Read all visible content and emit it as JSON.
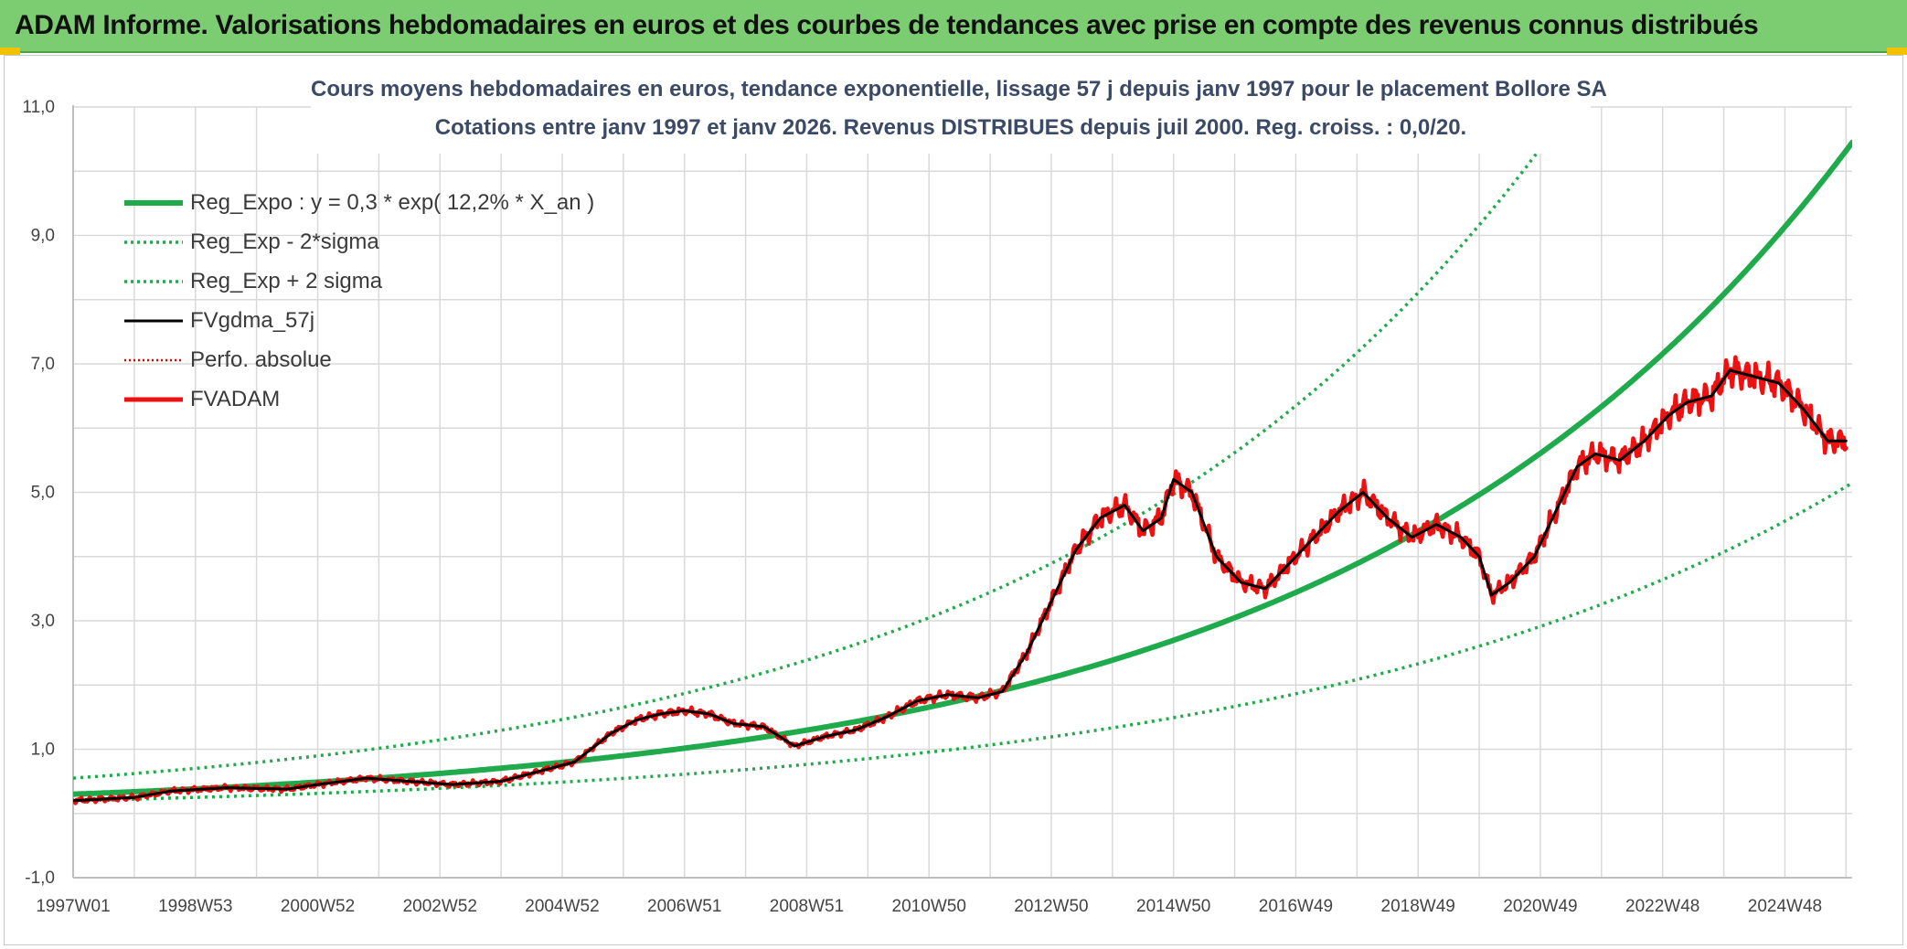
{
  "header": {
    "title": "ADAM Informe. Valorisations hebdomadaires en euros et des courbes de tendances avec prise en compte des revenus connus distribués"
  },
  "chart_data": {
    "type": "line",
    "title": "Cours moyens hebdomadaires en euros, tendance exponentielle, lissage 57 j depuis janv 1997 pour le placement Bollore SA",
    "subtitle": "Cotations entre janv 1997 et janv 2026. Revenus DISTRIBUES depuis juil 2000. Reg. croiss. : 0,0/20.",
    "xlabel": "",
    "ylabel": "",
    "ylim": [
      -1,
      11
    ],
    "xlim": [
      1997.0,
      2026.1
    ],
    "grid": true,
    "legend_position": "top-left",
    "y_ticks": [
      "-1,0",
      "1,0",
      "3,0",
      "5,0",
      "7,0",
      "9,0",
      "11,0"
    ],
    "y_tick_values": [
      -1,
      1,
      3,
      5,
      7,
      9,
      11
    ],
    "x_ticks": [
      "1997W01",
      "1998W53",
      "2000W52",
      "2002W52",
      "2004W52",
      "2006W51",
      "2008W51",
      "2010W50",
      "2012W50",
      "2014W50",
      "2016W49",
      "2018W49",
      "2020W49",
      "2022W48",
      "2024W48"
    ],
    "x_tick_values": [
      1997,
      1999,
      2001,
      2003,
      2005,
      2007,
      2009,
      2011,
      2013,
      2015,
      2017,
      2019,
      2021,
      2023,
      2025
    ],
    "series": [
      {
        "name": "Reg_Expo : y = 0,3 * exp( 12,2% *  X_an )",
        "color": "#1faa4b",
        "style": "solid-thick",
        "formula": "exp",
        "a": 0.3,
        "b": 0.122
      },
      {
        "name": "Reg_Exp - 2*sigma",
        "color": "#1faa4b",
        "style": "dotted",
        "formula": "exp",
        "a": 0.2,
        "b": 0.1116
      },
      {
        "name": "Reg_Exp + 2 sigma",
        "color": "#1faa4b",
        "style": "dotted",
        "formula": "exp",
        "a": 0.55,
        "b": 0.1223
      },
      {
        "name": "FVgdma_57j",
        "color": "#000000",
        "style": "solid",
        "x": [
          1997.0,
          1998.0,
          1998.6,
          1999.5,
          2000.5,
          2001.0,
          2001.8,
          2002.5,
          2003.2,
          2004.0,
          2004.6,
          2005.2,
          2005.8,
          2006.2,
          2006.6,
          2007.0,
          2007.4,
          2007.8,
          2008.3,
          2008.8,
          2009.3,
          2009.8,
          2010.3,
          2010.8,
          2011.3,
          2011.8,
          2012.2,
          2012.6,
          2013.0,
          2013.4,
          2013.8,
          2014.2,
          2014.5,
          2014.8,
          2015.0,
          2015.3,
          2015.7,
          2016.1,
          2016.5,
          2016.9,
          2017.3,
          2017.7,
          2018.1,
          2018.5,
          2018.9,
          2019.3,
          2019.7,
          2020.0,
          2020.2,
          2020.5,
          2020.9,
          2021.3,
          2021.6,
          2021.9,
          2022.3,
          2022.7,
          2023.1,
          2023.4,
          2023.8,
          2024.1,
          2024.5,
          2024.9,
          2025.3,
          2025.7,
          2026.0
        ],
        "y": [
          0.2,
          0.25,
          0.35,
          0.4,
          0.38,
          0.45,
          0.55,
          0.5,
          0.45,
          0.5,
          0.65,
          0.8,
          1.25,
          1.45,
          1.55,
          1.6,
          1.55,
          1.4,
          1.35,
          1.05,
          1.2,
          1.3,
          1.5,
          1.75,
          1.85,
          1.8,
          1.9,
          2.5,
          3.3,
          4.1,
          4.6,
          4.8,
          4.4,
          4.6,
          5.2,
          5.0,
          4.0,
          3.6,
          3.5,
          3.9,
          4.3,
          4.7,
          5.0,
          4.6,
          4.3,
          4.5,
          4.3,
          4.0,
          3.4,
          3.6,
          4.0,
          4.8,
          5.4,
          5.6,
          5.5,
          5.8,
          6.2,
          6.4,
          6.5,
          6.9,
          6.8,
          6.7,
          6.3,
          5.8,
          5.8
        ]
      },
      {
        "name": "Perfo. absolue",
        "color": "#e00000",
        "style": "dotted",
        "x": [],
        "y": []
      },
      {
        "name": "FVADAM",
        "color": "#ee1111",
        "style": "solid-thick",
        "x": [
          1997.0,
          1998.0,
          1998.6,
          1999.5,
          2000.5,
          2001.0,
          2001.8,
          2002.5,
          2003.2,
          2004.0,
          2004.6,
          2005.2,
          2005.8,
          2006.2,
          2006.6,
          2007.0,
          2007.4,
          2007.8,
          2008.3,
          2008.8,
          2009.3,
          2009.8,
          2010.3,
          2010.8,
          2011.3,
          2011.8,
          2012.2,
          2012.6,
          2013.0,
          2013.4,
          2013.8,
          2014.2,
          2014.5,
          2014.8,
          2015.0,
          2015.3,
          2015.7,
          2016.1,
          2016.5,
          2016.9,
          2017.3,
          2017.7,
          2018.1,
          2018.5,
          2018.9,
          2019.3,
          2019.7,
          2020.0,
          2020.2,
          2020.5,
          2020.9,
          2021.3,
          2021.6,
          2021.9,
          2022.3,
          2022.7,
          2023.1,
          2023.4,
          2023.8,
          2024.1,
          2024.5,
          2024.9,
          2025.3,
          2025.7,
          2026.0
        ],
        "y": [
          0.2,
          0.25,
          0.35,
          0.4,
          0.38,
          0.45,
          0.55,
          0.5,
          0.45,
          0.5,
          0.65,
          0.8,
          1.25,
          1.45,
          1.55,
          1.6,
          1.55,
          1.4,
          1.35,
          1.05,
          1.2,
          1.3,
          1.5,
          1.75,
          1.85,
          1.8,
          1.9,
          2.5,
          3.3,
          4.1,
          4.6,
          4.8,
          4.4,
          4.6,
          5.2,
          5.0,
          4.0,
          3.6,
          3.5,
          3.9,
          4.3,
          4.7,
          5.0,
          4.6,
          4.3,
          4.5,
          4.3,
          4.0,
          3.4,
          3.6,
          4.0,
          4.8,
          5.4,
          5.6,
          5.5,
          5.8,
          6.2,
          6.4,
          6.5,
          6.9,
          6.8,
          6.7,
          6.3,
          5.8,
          5.8
        ]
      }
    ]
  }
}
